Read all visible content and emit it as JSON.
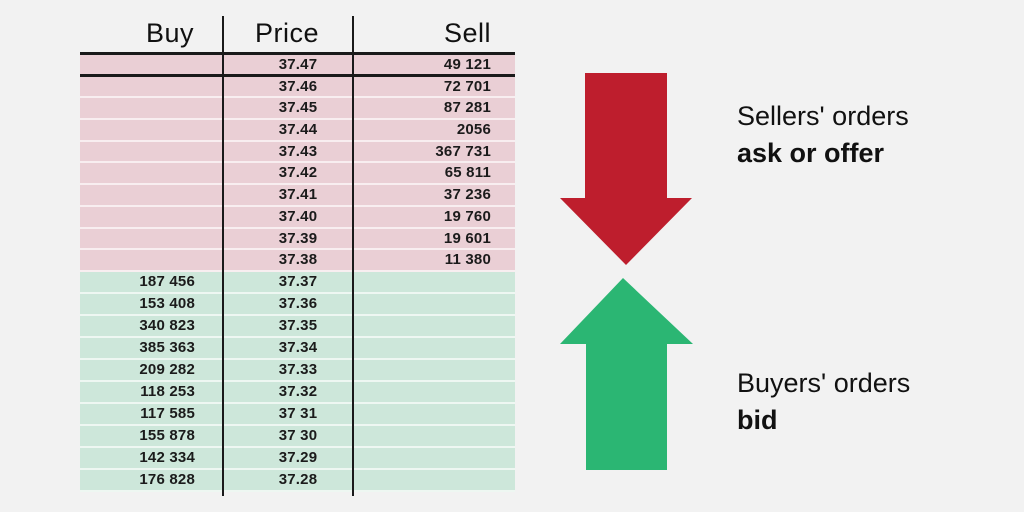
{
  "colors": {
    "background": "#f2f2f2",
    "ask_row_bg": "#eacfd5",
    "bid_row_bg": "#cde7da",
    "ask_arrow": "#be1e2d",
    "bid_arrow": "#2bb673",
    "divider_line": "#1a1a1a",
    "text": "#111111"
  },
  "table": {
    "headers": [
      "Buy",
      "Price",
      "Sell"
    ],
    "ask_rows": [
      {
        "buy": "",
        "price": "37.47",
        "sell": "49 121"
      },
      {
        "buy": "",
        "price": "37.46",
        "sell": "72 701"
      },
      {
        "buy": "",
        "price": "37.45",
        "sell": "87 281"
      },
      {
        "buy": "",
        "price": "37.44",
        "sell": "2056"
      },
      {
        "buy": "",
        "price": "37.43",
        "sell": "367 731"
      },
      {
        "buy": "",
        "price": "37.42",
        "sell": "65 811"
      },
      {
        "buy": "",
        "price": "37.41",
        "sell": "37 236"
      },
      {
        "buy": "",
        "price": "37.40",
        "sell": "19 760"
      },
      {
        "buy": "",
        "price": "37.39",
        "sell": "19 601"
      },
      {
        "buy": "",
        "price": "37.38",
        "sell": "11 380"
      }
    ],
    "bid_rows": [
      {
        "buy": "187 456",
        "price": "37.37",
        "sell": ""
      },
      {
        "buy": "153 408",
        "price": "37.36",
        "sell": ""
      },
      {
        "buy": "340 823",
        "price": "37.35",
        "sell": ""
      },
      {
        "buy": "385 363",
        "price": "37.34",
        "sell": ""
      },
      {
        "buy": "209 282",
        "price": "37.33",
        "sell": ""
      },
      {
        "buy": "118 253",
        "price": "37.32",
        "sell": ""
      },
      {
        "buy": "117 585",
        "price": "37 31",
        "sell": ""
      },
      {
        "buy": "155 878",
        "price": "37 30",
        "sell": ""
      },
      {
        "buy": "142 334",
        "price": "37.29",
        "sell": ""
      },
      {
        "buy": "176 828",
        "price": "37.28",
        "sell": ""
      }
    ]
  },
  "annotations": {
    "sellers": {
      "line1": "Sellers' orders",
      "line2": "ask or offer"
    },
    "buyers": {
      "line1": "Buyers' orders",
      "line2": "bid"
    }
  }
}
